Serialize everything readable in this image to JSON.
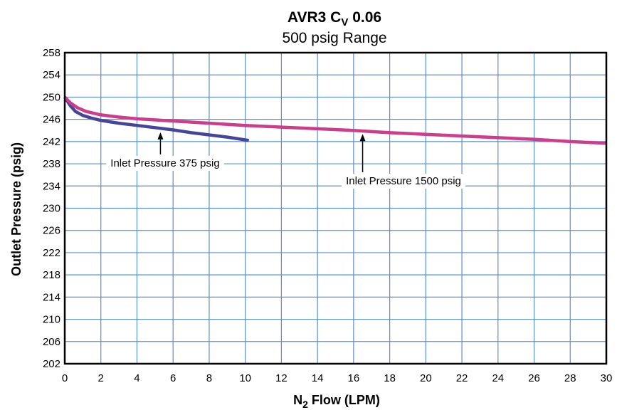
{
  "chart_data": {
    "type": "line",
    "title_main": "AVR3 C",
    "title_sub_script": "V",
    "title_suffix": " 0.06",
    "subtitle": "500 psig Range",
    "xlabel_prefix": "N",
    "xlabel_sub": "2",
    "xlabel_suffix": " Flow (LPM)",
    "ylabel": "Outlet Pressure (psig)",
    "xlim": [
      0,
      30
    ],
    "ylim": [
      202,
      258
    ],
    "x_ticks": [
      0,
      2,
      4,
      6,
      8,
      10,
      12,
      14,
      16,
      18,
      20,
      22,
      24,
      26,
      28,
      30
    ],
    "y_ticks": [
      202,
      206,
      210,
      214,
      218,
      222,
      226,
      230,
      234,
      238,
      242,
      246,
      250,
      254,
      258
    ],
    "grid": true,
    "colors": {
      "grid": "#5b8fc7",
      "frame": "#000000",
      "series_375": "#45459a",
      "series_1500": "#cc3d8c"
    },
    "series": [
      {
        "name": "Inlet Pressure 375 psig",
        "x": [
          0,
          0.3,
          0.6,
          1.0,
          1.5,
          2,
          3,
          4,
          5,
          6,
          7,
          8,
          9,
          10.2
        ],
        "y": [
          250,
          248.5,
          247.4,
          246.7,
          246.2,
          245.8,
          245.3,
          244.9,
          244.5,
          244.1,
          243.6,
          243.2,
          242.8,
          242.2
        ]
      },
      {
        "name": "Inlet Pressure 1500 psig",
        "x": [
          0,
          0.3,
          0.7,
          1.2,
          2,
          3,
          4,
          6,
          8,
          10,
          12,
          14,
          16,
          18,
          20,
          22,
          24,
          26,
          28,
          30
        ],
        "y": [
          250,
          249.0,
          248.1,
          247.4,
          246.8,
          246.4,
          246.1,
          245.7,
          245.3,
          244.9,
          244.6,
          244.3,
          244.0,
          243.6,
          243.3,
          243.0,
          242.7,
          242.4,
          242.0,
          241.7
        ]
      }
    ],
    "annotations": [
      {
        "text": "Inlet Pressure 375 psig",
        "arrow_to": [
          5.3,
          244.3
        ]
      },
      {
        "text": "Inlet Pressure 1500 psig",
        "arrow_to": [
          16.5,
          244.0
        ]
      }
    ]
  }
}
